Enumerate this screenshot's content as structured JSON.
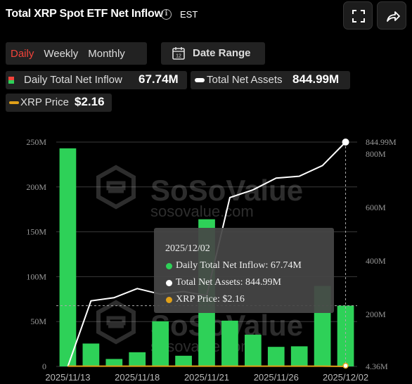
{
  "header": {
    "title": "Total XRP Spot ETF Net Inflow",
    "info_icon": "info-icon",
    "timezone": "EST",
    "fullscreen_icon": "fullscreen-icon",
    "share_icon": "share-icon"
  },
  "controls": {
    "periods": [
      "Daily",
      "Weekly",
      "Monthly"
    ],
    "active_period": "Daily",
    "date_range_label": "Date Range",
    "date_range_icon": "calendar-icon"
  },
  "summary": {
    "daily_inflow_label": "Daily Total Net Inflow",
    "daily_inflow_value": "67.74M",
    "net_assets_label": "Total Net Assets",
    "net_assets_value": "844.99M",
    "xrp_price_label": "XRP Price",
    "xrp_price_value": "$2.16"
  },
  "tooltip": {
    "date": "2025/12/02",
    "inflow_text": "Daily Total Net Inflow: 67.74M",
    "assets_text": "Total Net Assets: 844.99M",
    "price_text": "XRP Price: $2.16"
  },
  "watermark": {
    "brand": "SoSoValue",
    "url": "sosovalue.com"
  },
  "colors": {
    "bar": "#2ed158",
    "net_assets_line": "#ffffff",
    "price_line": "#e0a018",
    "active_tab": "#f2433a",
    "tooltip_bg": "#464646"
  },
  "chart_data": {
    "type": "bar",
    "x": [
      "2025/11/13",
      "2025/11/14",
      "2025/11/17",
      "2025/11/18",
      "2025/11/19",
      "2025/11/20",
      "2025/11/21",
      "2025/11/24",
      "2025/11/25",
      "2025/11/26",
      "2025/11/28",
      "2025/12/01",
      "2025/12/02"
    ],
    "x_tick_labels": [
      "2025/11/13",
      "2025/11/18",
      "2025/11/21",
      "2025/11/26",
      "2025/12/02"
    ],
    "series": [
      {
        "name": "Daily Total Net Inflow",
        "axis": "left",
        "type": "bar",
        "values": [
          243,
          25.5,
          8.3,
          15.8,
          50.3,
          11.9,
          164,
          51,
          35.4,
          21.8,
          22.4,
          89.7,
          67.74
        ]
      },
      {
        "name": "Total Net Assets",
        "axis": "right",
        "type": "line",
        "values": [
          4.36,
          250,
          262,
          296,
          275,
          285,
          270,
          637,
          666,
          710,
          717,
          757,
          844.99
        ]
      },
      {
        "name": "XRP Price",
        "axis": "right-price",
        "type": "line",
        "values": [
          2.2,
          2.2,
          2.2,
          2.2,
          2.2,
          2.2,
          2.2,
          2.2,
          2.2,
          2.2,
          2.2,
          2.2,
          2.16
        ]
      }
    ],
    "left_axis": {
      "ticks": [
        "0",
        "50M",
        "100M",
        "150M",
        "200M",
        "250M"
      ],
      "range": [
        0,
        250
      ]
    },
    "right_axis": {
      "ticks": [
        "4.36M",
        "200M",
        "400M",
        "600M",
        "800M",
        "844.99M"
      ],
      "range": [
        4.36,
        844.99
      ]
    },
    "grid": true,
    "highlighted_point": "2025/12/02"
  }
}
